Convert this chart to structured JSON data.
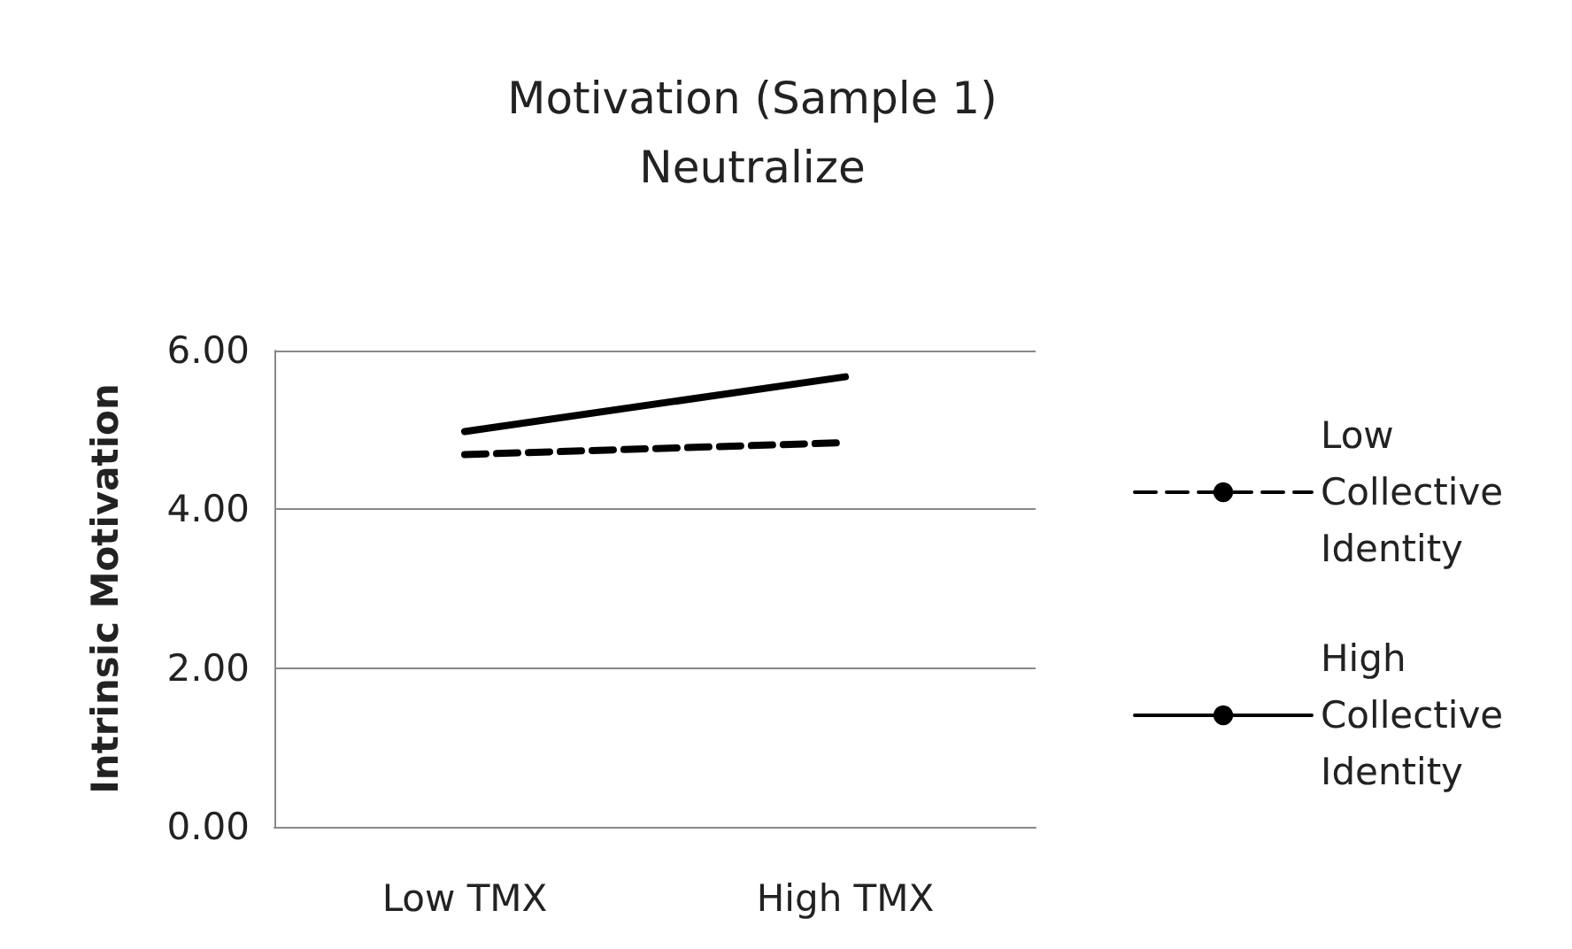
{
  "chart_data": {
    "type": "line",
    "title": "Motivation (Sample 1)",
    "subtitle": "Neutralize",
    "ylabel": "Intrinsic Motivation",
    "categories": [
      "Low TMX",
      "High TMX"
    ],
    "series": [
      {
        "name": "Low Collective Identity",
        "color": "#000000",
        "values": [
          4.69,
          4.84
        ],
        "line_style": "dashed"
      },
      {
        "name": "High Collective Identity",
        "color": "#000000",
        "values": [
          4.98,
          5.67
        ],
        "line_style": "solid"
      }
    ],
    "ylim": [
      0,
      6
    ],
    "yticks": [
      {
        "value": 0,
        "label": "0.00"
      },
      {
        "value": 2,
        "label": "2.00"
      },
      {
        "value": 4,
        "label": "4.00"
      },
      {
        "value": 6,
        "label": "6.00"
      }
    ],
    "grid": "y",
    "legend": "right",
    "marker": "none"
  }
}
